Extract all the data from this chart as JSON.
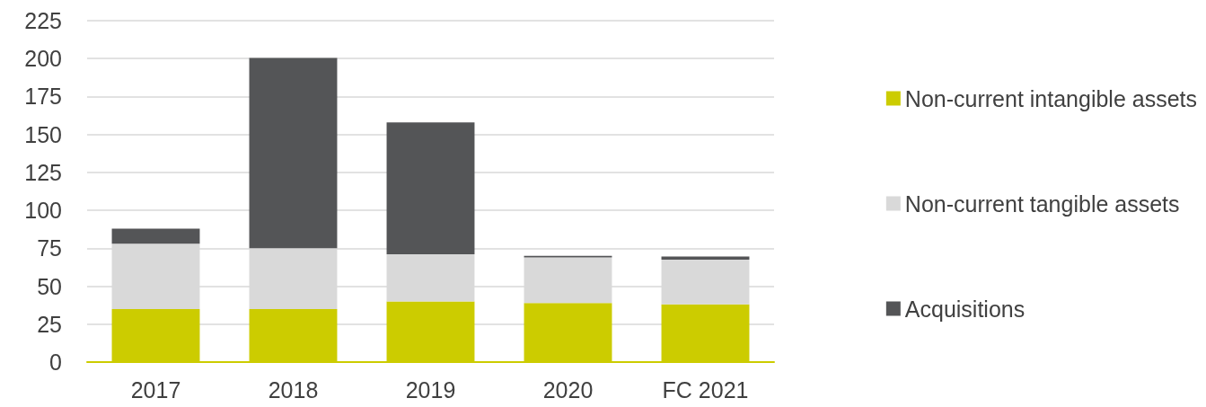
{
  "chart_data": {
    "type": "bar",
    "stacked": true,
    "categories": [
      "2017",
      "2018",
      "2019",
      "2020",
      "FC 2021"
    ],
    "series": [
      {
        "name": "Non-current intangible assets",
        "color": "#cccc00",
        "values": [
          35,
          35,
          40,
          39,
          38
        ]
      },
      {
        "name": "Non-current tangible assets",
        "color": "#d9d9d9",
        "values": [
          43,
          40,
          31,
          30,
          29.5
        ]
      },
      {
        "name": "Acquisitions",
        "color": "#545557",
        "values": [
          10,
          125.5,
          87,
          1,
          2
        ]
      }
    ],
    "ylim": [
      0,
      225
    ],
    "yticks": [
      0,
      25,
      50,
      75,
      100,
      125,
      150,
      175,
      200,
      225
    ],
    "grid": "y",
    "legend": "right"
  }
}
